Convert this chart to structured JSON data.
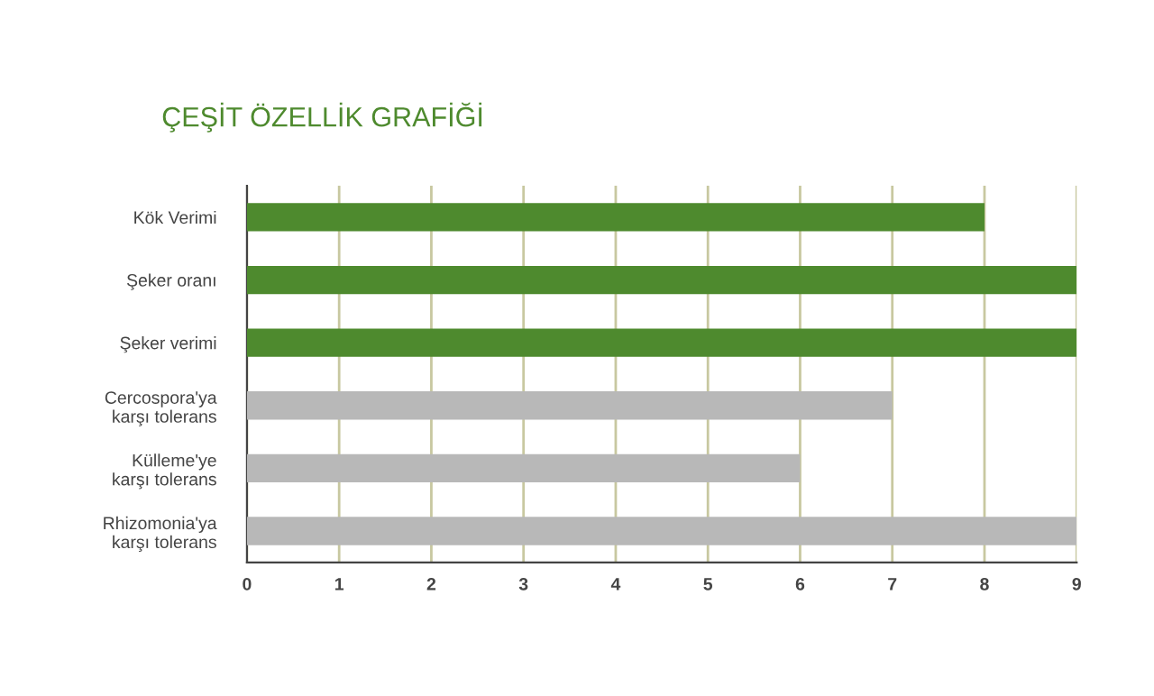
{
  "chart_data": {
    "type": "bar",
    "orientation": "horizontal",
    "title": "ÇEŞİT ÖZELLİK GRAFİĞİ",
    "categories": [
      "Kök Verimi",
      "Şeker oranı",
      "Şeker verimi",
      "Cercospora'ya\nkarşı tolerans",
      "Külleme'ye\nkarşı tolerans",
      "Rhizomonia'ya\nkarşı tolerans"
    ],
    "values": [
      8,
      9,
      9,
      7,
      6,
      9
    ],
    "colors": [
      "#4e8a2e",
      "#4e8a2e",
      "#4e8a2e",
      "#b8b8b8",
      "#b8b8b8",
      "#b8b8b8"
    ],
    "xlim": [
      0,
      9
    ],
    "xticks": [
      0,
      1,
      2,
      3,
      4,
      5,
      6,
      7,
      8,
      9
    ],
    "grid": "x"
  }
}
